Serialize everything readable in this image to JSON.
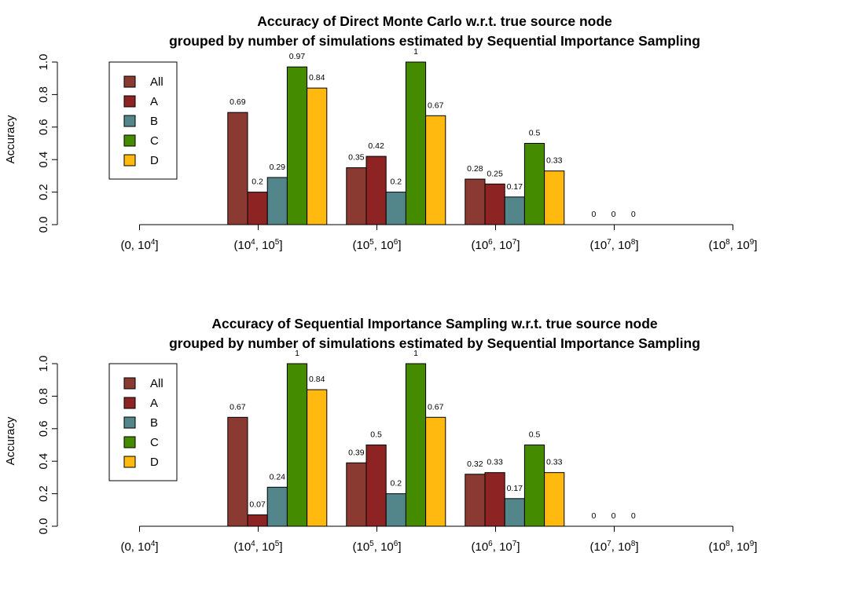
{
  "chart_data": [
    {
      "type": "bar",
      "title": [
        "Accuracy of Direct Monte Carlo w.r.t. true source node",
        "grouped by number of simulations estimated by Sequential Importance Sampling"
      ],
      "ylabel": "Accuracy",
      "ylim": [
        0,
        1
      ],
      "yticks": [
        "0.0",
        "0.2",
        "0.4",
        "0.6",
        "0.8",
        "1.0"
      ],
      "categories": [
        {
          "base": "(0, 10",
          "exp": "4",
          "tail": "]"
        },
        {
          "base": "(10",
          "exp": "4",
          "mid": ", 10",
          "exp2": "5",
          "tail": "]"
        },
        {
          "base": "(10",
          "exp": "5",
          "mid": ", 10",
          "exp2": "6",
          "tail": "]"
        },
        {
          "base": "(10",
          "exp": "6",
          "mid": ", 10",
          "exp2": "7",
          "tail": "]"
        },
        {
          "base": "(10",
          "exp": "7",
          "mid": ", 10",
          "exp2": "8",
          "tail": "]"
        },
        {
          "base": "(10",
          "exp": "8",
          "mid": ", 10",
          "exp2": "9",
          "tail": "]"
        }
      ],
      "legend": {
        "position": "top-left"
      },
      "series": [
        {
          "name": "All",
          "color": "#8B3A32",
          "values": [
            null,
            0.69,
            0.35,
            0.28,
            0,
            null
          ],
          "labels": [
            "",
            "0.69",
            "0.35",
            "0.28",
            "0",
            ""
          ]
        },
        {
          "name": "A",
          "color": "#8E2323",
          "values": [
            null,
            0.2,
            0.42,
            0.25,
            0,
            null
          ],
          "labels": [
            "",
            "0.2",
            "0.42",
            "0.25",
            "0",
            ""
          ]
        },
        {
          "name": "B",
          "color": "#53868B",
          "values": [
            null,
            0.29,
            0.2,
            0.17,
            0,
            null
          ],
          "labels": [
            "",
            "0.29",
            "0.2",
            "0.17",
            "0",
            ""
          ]
        },
        {
          "name": "C",
          "color": "#458B00",
          "values": [
            null,
            0.97,
            1,
            0.5,
            null,
            null
          ],
          "labels": [
            "",
            "0.97",
            "1",
            "0.5",
            "",
            ""
          ]
        },
        {
          "name": "D",
          "color": "#FFB90F",
          "values": [
            null,
            0.84,
            0.67,
            0.33,
            null,
            null
          ],
          "labels": [
            "",
            "0.84",
            "0.67",
            "0.33",
            "",
            ""
          ]
        }
      ]
    },
    {
      "type": "bar",
      "title": [
        "Accuracy of Sequential Importance Sampling w.r.t. true source node",
        "grouped by number of simulations estimated by Sequential Importance Sampling"
      ],
      "ylabel": "Accuracy",
      "ylim": [
        0,
        1
      ],
      "yticks": [
        "0.0",
        "0.2",
        "0.4",
        "0.6",
        "0.8",
        "1.0"
      ],
      "categories": [
        {
          "base": "(0, 10",
          "exp": "4",
          "tail": "]"
        },
        {
          "base": "(10",
          "exp": "4",
          "mid": ", 10",
          "exp2": "5",
          "tail": "]"
        },
        {
          "base": "(10",
          "exp": "5",
          "mid": ", 10",
          "exp2": "6",
          "tail": "]"
        },
        {
          "base": "(10",
          "exp": "6",
          "mid": ", 10",
          "exp2": "7",
          "tail": "]"
        },
        {
          "base": "(10",
          "exp": "7",
          "mid": ", 10",
          "exp2": "8",
          "tail": "]"
        },
        {
          "base": "(10",
          "exp": "8",
          "mid": ", 10",
          "exp2": "9",
          "tail": "]"
        }
      ],
      "legend": {
        "position": "top-left"
      },
      "series": [
        {
          "name": "All",
          "color": "#8B3A32",
          "values": [
            null,
            0.67,
            0.39,
            0.32,
            0,
            null
          ],
          "labels": [
            "",
            "0.67",
            "0.39",
            "0.32",
            "0",
            ""
          ]
        },
        {
          "name": "A",
          "color": "#8E2323",
          "values": [
            null,
            0.07,
            0.5,
            0.33,
            0,
            null
          ],
          "labels": [
            "",
            "0.07",
            "0.5",
            "0.33",
            "0",
            ""
          ]
        },
        {
          "name": "B",
          "color": "#53868B",
          "values": [
            null,
            0.24,
            0.2,
            0.17,
            0,
            null
          ],
          "labels": [
            "",
            "0.24",
            "0.2",
            "0.17",
            "0",
            ""
          ]
        },
        {
          "name": "C",
          "color": "#458B00",
          "values": [
            null,
            1,
            1,
            0.5,
            null,
            null
          ],
          "labels": [
            "",
            "1",
            "1",
            "0.5",
            "",
            ""
          ]
        },
        {
          "name": "D",
          "color": "#FFB90F",
          "values": [
            null,
            0.84,
            0.67,
            0.33,
            null,
            null
          ],
          "labels": [
            "",
            "0.84",
            "0.67",
            "0.33",
            "",
            ""
          ]
        }
      ]
    }
  ]
}
